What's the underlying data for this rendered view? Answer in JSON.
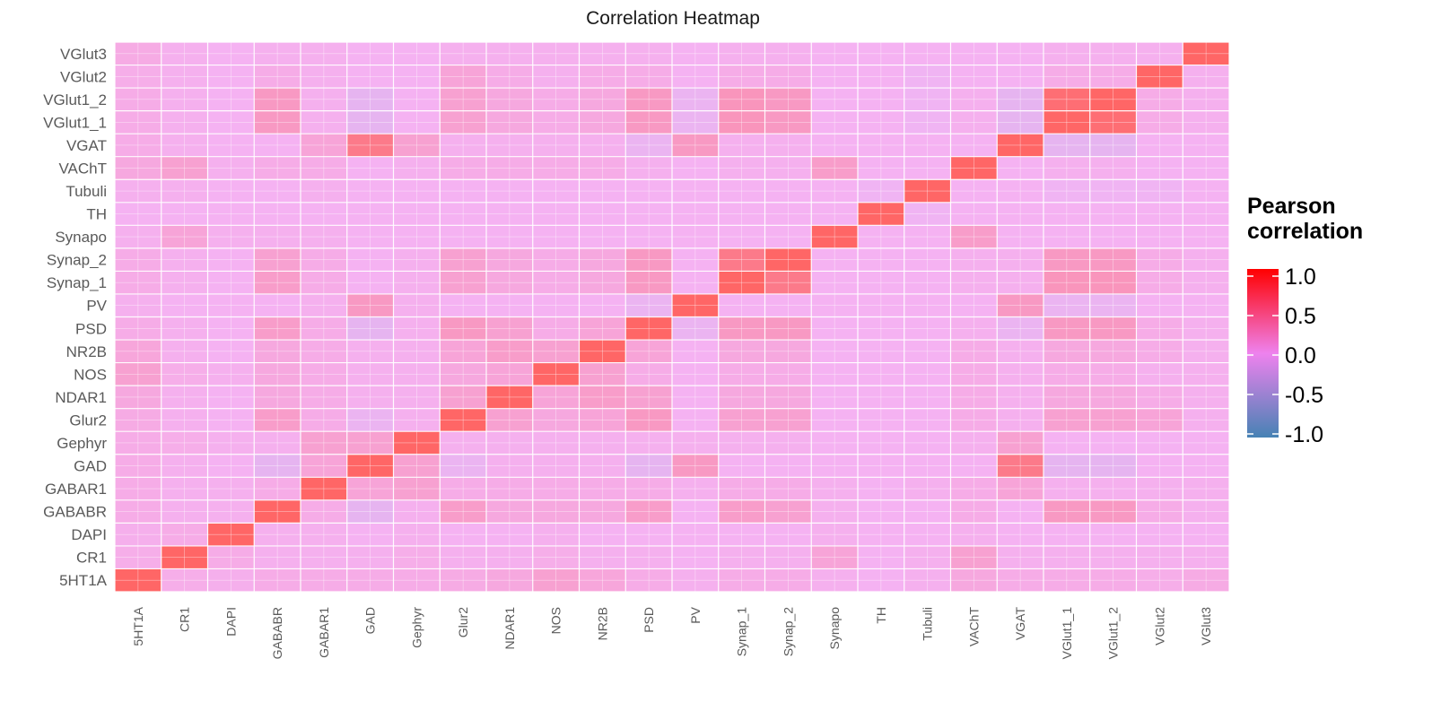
{
  "chart_data": {
    "type": "heatmap",
    "title": "Correlation Heatmap",
    "labels": [
      "5HT1A",
      "CR1",
      "DAPI",
      "GABABR",
      "GABAR1",
      "GAD",
      "Gephyr",
      "Glur2",
      "NDAR1",
      "NOS",
      "NR2B",
      "PSD",
      "PV",
      "Synap_1",
      "Synap_2",
      "Synapo",
      "TH",
      "Tubuli",
      "VAChT",
      "VGAT",
      "VGlut1_1",
      "VGlut1_2",
      "VGlut2",
      "VGlut3"
    ],
    "values": [
      [
        1.0,
        0.08,
        0.06,
        0.1,
        0.1,
        0.1,
        0.1,
        0.12,
        0.15,
        0.25,
        0.18,
        0.1,
        0.05,
        0.1,
        0.1,
        0.05,
        0.02,
        0.05,
        0.15,
        0.1,
        0.1,
        0.1,
        0.08,
        0.12
      ],
      [
        0.08,
        1.0,
        0.1,
        0.05,
        0.05,
        0.05,
        0.08,
        0.05,
        0.05,
        0.08,
        0.05,
        0.05,
        0.02,
        0.05,
        0.05,
        0.2,
        0.02,
        0.05,
        0.25,
        0.05,
        0.05,
        0.05,
        0.05,
        0.05
      ],
      [
        0.06,
        0.1,
        1.0,
        0.05,
        0.05,
        0.02,
        0.05,
        0.02,
        0.02,
        0.05,
        0.02,
        0.02,
        0.02,
        0.02,
        0.02,
        0.05,
        0.02,
        0.02,
        0.05,
        0.02,
        0.02,
        0.02,
        0.02,
        0.02
      ],
      [
        0.1,
        0.05,
        0.05,
        1.0,
        0.1,
        -0.15,
        0.05,
        0.3,
        0.15,
        0.15,
        0.15,
        0.3,
        0.02,
        0.3,
        0.25,
        0.05,
        0.02,
        0.02,
        0.1,
        0.02,
        0.35,
        0.35,
        0.1,
        0.05
      ],
      [
        0.1,
        0.05,
        0.05,
        0.1,
        1.0,
        0.2,
        0.25,
        0.1,
        0.1,
        0.1,
        0.1,
        0.1,
        0.05,
        0.1,
        0.1,
        0.05,
        0.02,
        0.05,
        0.1,
        0.2,
        0.05,
        0.05,
        0.05,
        0.05
      ],
      [
        0.1,
        0.05,
        0.02,
        -0.15,
        0.2,
        1.0,
        0.25,
        -0.1,
        0.05,
        0.05,
        0.05,
        -0.15,
        0.35,
        0.02,
        0.02,
        0.02,
        0.02,
        0.02,
        0.02,
        0.75,
        -0.15,
        -0.15,
        0.02,
        0.02
      ],
      [
        0.1,
        0.08,
        0.05,
        0.05,
        0.25,
        0.25,
        1.0,
        0.05,
        0.05,
        0.05,
        0.05,
        0.05,
        0.05,
        0.05,
        0.05,
        0.02,
        0.02,
        0.02,
        0.05,
        0.25,
        0.02,
        0.02,
        0.02,
        0.02
      ],
      [
        0.12,
        0.05,
        0.02,
        0.3,
        0.1,
        -0.1,
        0.05,
        1.0,
        0.25,
        0.15,
        0.2,
        0.35,
        0.02,
        0.25,
        0.25,
        0.02,
        0.02,
        0.02,
        0.1,
        0.05,
        0.25,
        0.25,
        0.2,
        0.05
      ],
      [
        0.15,
        0.05,
        0.02,
        0.15,
        0.1,
        0.05,
        0.05,
        0.25,
        1.0,
        0.2,
        0.3,
        0.25,
        0.02,
        0.15,
        0.15,
        0.02,
        0.02,
        0.02,
        0.1,
        0.05,
        0.15,
        0.15,
        0.1,
        0.05
      ],
      [
        0.25,
        0.08,
        0.05,
        0.15,
        0.1,
        0.05,
        0.05,
        0.15,
        0.2,
        1.0,
        0.25,
        0.1,
        0.02,
        0.1,
        0.1,
        0.02,
        0.02,
        0.02,
        0.1,
        0.05,
        0.1,
        0.1,
        0.05,
        0.05
      ],
      [
        0.18,
        0.05,
        0.02,
        0.15,
        0.1,
        0.05,
        0.05,
        0.2,
        0.3,
        0.25,
        1.0,
        0.2,
        0.02,
        0.15,
        0.15,
        0.02,
        0.02,
        0.02,
        0.1,
        0.05,
        0.15,
        0.15,
        0.1,
        0.05
      ],
      [
        0.1,
        0.05,
        0.02,
        0.3,
        0.1,
        -0.15,
        0.05,
        0.35,
        0.25,
        0.1,
        0.2,
        1.0,
        -0.1,
        0.35,
        0.35,
        0.02,
        0.02,
        0.02,
        0.05,
        -0.1,
        0.35,
        0.35,
        0.1,
        0.05
      ],
      [
        0.05,
        0.02,
        0.02,
        0.02,
        0.05,
        0.35,
        0.05,
        0.02,
        0.02,
        0.02,
        0.02,
        -0.1,
        1.0,
        0.02,
        0.02,
        0.02,
        0.02,
        0.02,
        0.02,
        0.35,
        -0.1,
        -0.1,
        0.02,
        0.02
      ],
      [
        0.1,
        0.05,
        0.02,
        0.3,
        0.1,
        0.02,
        0.05,
        0.25,
        0.15,
        0.1,
        0.15,
        0.35,
        0.02,
        1.0,
        0.75,
        0.02,
        0.02,
        0.02,
        0.05,
        0.05,
        0.4,
        0.4,
        0.1,
        0.05
      ],
      [
        0.1,
        0.05,
        0.02,
        0.25,
        0.1,
        0.02,
        0.05,
        0.25,
        0.15,
        0.1,
        0.15,
        0.35,
        0.02,
        0.75,
        1.0,
        0.02,
        0.02,
        0.02,
        0.05,
        0.05,
        0.35,
        0.35,
        0.1,
        0.05
      ],
      [
        0.05,
        0.2,
        0.05,
        0.05,
        0.05,
        0.02,
        0.02,
        0.02,
        0.02,
        0.02,
        0.02,
        0.02,
        0.02,
        0.02,
        0.02,
        1.0,
        0.02,
        0.02,
        0.3,
        0.02,
        0.02,
        0.02,
        0.02,
        0.02
      ],
      [
        0.02,
        0.02,
        0.02,
        0.02,
        0.02,
        0.02,
        0.02,
        0.02,
        0.02,
        0.02,
        0.02,
        0.02,
        0.02,
        0.02,
        0.02,
        0.02,
        1.0,
        -0.05,
        0.02,
        0.02,
        0.02,
        0.02,
        0.02,
        0.02
      ],
      [
        0.05,
        0.05,
        0.02,
        0.02,
        0.05,
        0.02,
        0.02,
        0.02,
        0.02,
        0.02,
        0.02,
        0.02,
        0.02,
        0.02,
        0.02,
        0.02,
        -0.05,
        1.0,
        0.02,
        0.02,
        -0.05,
        -0.05,
        -0.05,
        0.02
      ],
      [
        0.15,
        0.25,
        0.05,
        0.1,
        0.1,
        0.02,
        0.05,
        0.1,
        0.1,
        0.1,
        0.1,
        0.05,
        0.02,
        0.05,
        0.05,
        0.3,
        0.02,
        0.02,
        1.0,
        0.02,
        0.05,
        0.05,
        0.02,
        0.02
      ],
      [
        0.1,
        0.05,
        0.02,
        0.02,
        0.2,
        0.75,
        0.25,
        0.05,
        0.05,
        0.05,
        0.05,
        -0.1,
        0.35,
        0.05,
        0.05,
        0.02,
        0.02,
        0.02,
        0.02,
        1.0,
        -0.15,
        -0.15,
        0.02,
        0.02
      ],
      [
        0.1,
        0.05,
        0.02,
        0.35,
        0.05,
        -0.15,
        0.02,
        0.25,
        0.15,
        0.1,
        0.15,
        0.35,
        -0.1,
        0.4,
        0.35,
        0.02,
        0.02,
        -0.05,
        0.05,
        -0.15,
        1.0,
        0.9,
        0.1,
        0.05
      ],
      [
        0.1,
        0.05,
        0.02,
        0.35,
        0.05,
        -0.15,
        0.02,
        0.25,
        0.15,
        0.1,
        0.15,
        0.35,
        -0.1,
        0.4,
        0.35,
        0.02,
        0.02,
        -0.05,
        0.05,
        -0.15,
        0.9,
        1.0,
        0.1,
        0.05
      ],
      [
        0.08,
        0.05,
        0.02,
        0.1,
        0.05,
        0.02,
        0.02,
        0.2,
        0.1,
        0.05,
        0.1,
        0.1,
        0.02,
        0.1,
        0.1,
        0.02,
        0.02,
        -0.05,
        0.02,
        0.02,
        0.1,
        0.1,
        1.0,
        0.05
      ],
      [
        0.12,
        0.05,
        0.02,
        0.05,
        0.05,
        0.02,
        0.02,
        0.05,
        0.05,
        0.05,
        0.05,
        0.05,
        0.02,
        0.05,
        0.05,
        0.02,
        0.02,
        0.02,
        0.02,
        0.02,
        0.05,
        0.05,
        0.05,
        1.0
      ]
    ],
    "legend": {
      "title_lines": [
        "Pearson",
        "correlation"
      ],
      "ticks": [
        1.0,
        0.5,
        0.0,
        -0.5,
        -1.0
      ],
      "tick_labels": [
        "1.0",
        "0.5",
        "0.0",
        "-0.5",
        "-1.0"
      ],
      "limits": [
        -1.0,
        1.0
      ],
      "placement": "right"
    },
    "colorscale": {
      "low": "#4682B4",
      "mid": "#EE82EE",
      "high": "#FF0000"
    },
    "cell_alpha": 0.6,
    "grid": true
  }
}
